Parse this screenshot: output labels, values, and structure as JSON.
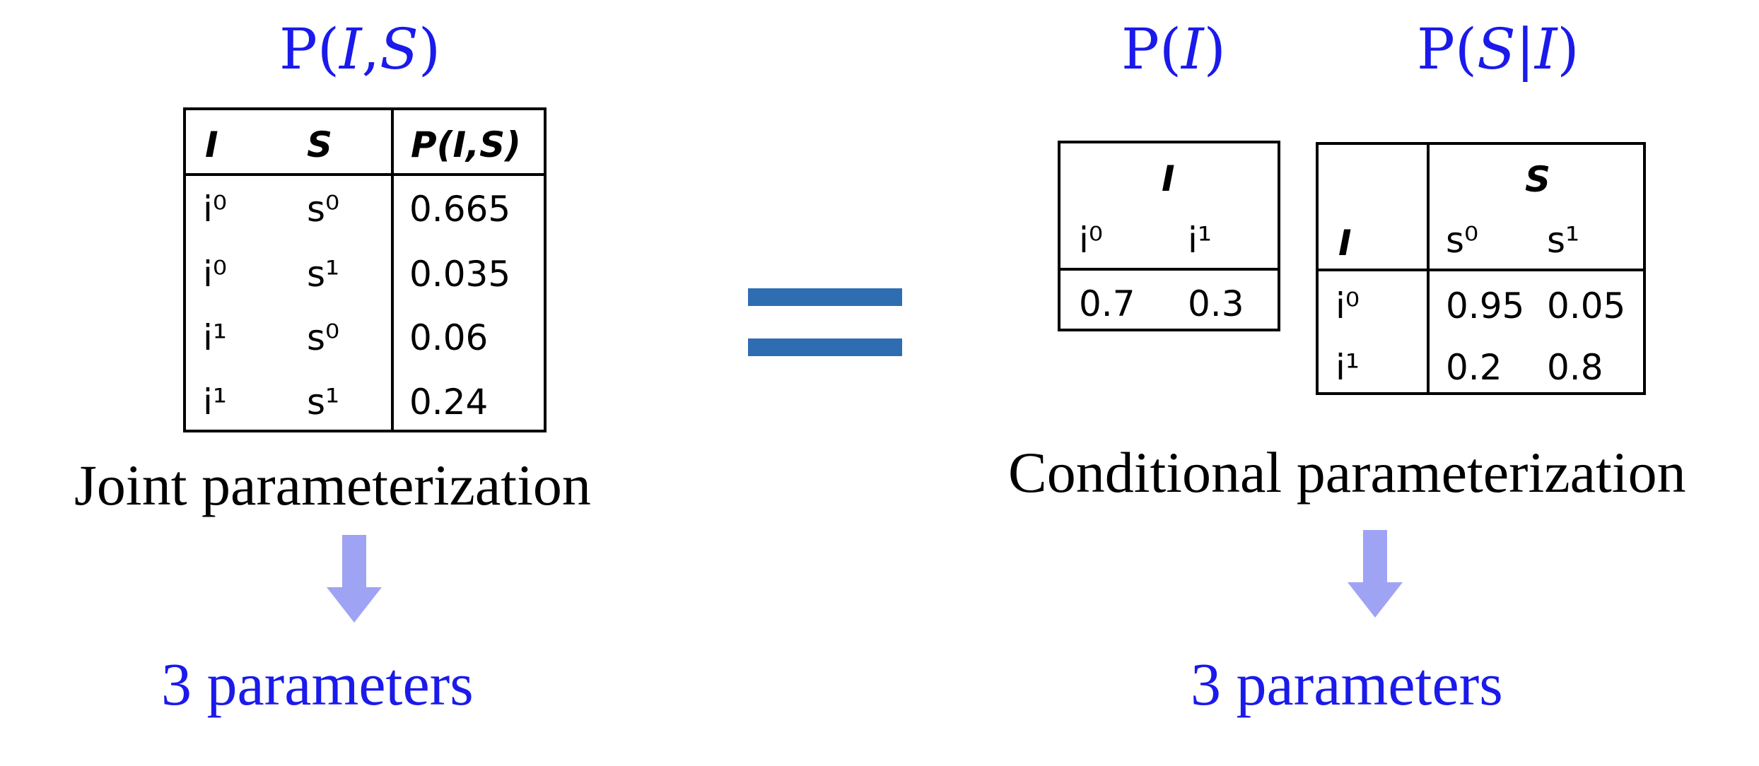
{
  "left": {
    "formula": {
      "prefix": "P(",
      "var1": "I",
      "sep": ",",
      "var2": "S",
      "suffix": ")"
    },
    "table": {
      "headers": [
        "I",
        "S",
        "P(I,S)"
      ],
      "rows": [
        [
          "i⁰",
          "s⁰",
          "0.665"
        ],
        [
          "i⁰",
          "s¹",
          "0.035"
        ],
        [
          "i¹",
          "s⁰",
          "0.06"
        ],
        [
          "i¹",
          "s¹",
          "0.24"
        ]
      ]
    },
    "caption": "Joint parameterization",
    "count": "3 parameters"
  },
  "equals_icon": "equals-sign",
  "right": {
    "formula_i": {
      "prefix": "P(",
      "var": "I",
      "suffix": ")"
    },
    "formula_si": {
      "prefix": "P(",
      "var1": "S",
      "sep": "|",
      "var2": "I",
      "suffix": ")"
    },
    "table_i": {
      "header": "I",
      "columns": [
        "i⁰",
        "i¹"
      ],
      "values": [
        "0.7",
        "0.3"
      ]
    },
    "table_si": {
      "row_header": "I",
      "col_header": "S",
      "columns": [
        "s⁰",
        "s¹"
      ],
      "rows": [
        {
          "label": "i⁰",
          "values": [
            "0.95",
            "0.05"
          ]
        },
        {
          "label": "i¹",
          "values": [
            "0.2",
            "0.8"
          ]
        }
      ]
    },
    "caption": "Conditional parameterization",
    "count": "3 parameters"
  },
  "colors": {
    "accent_blue": "#1a1aeb",
    "equals_blue": "#2f6db3",
    "arrow_lavender": "#9fa3f3"
  }
}
